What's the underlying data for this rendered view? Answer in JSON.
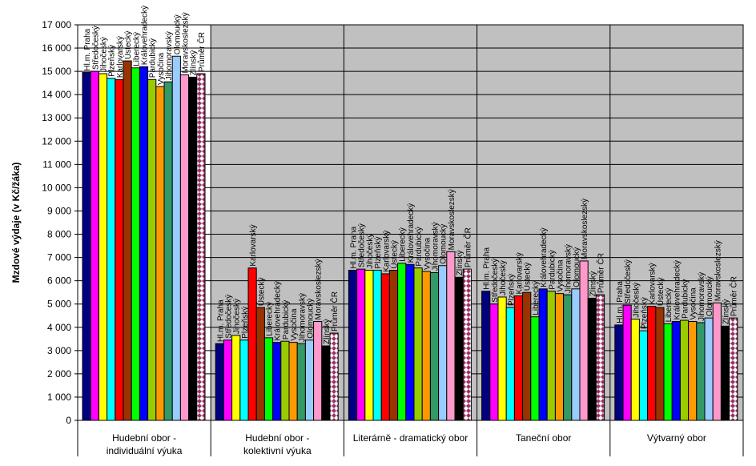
{
  "chart_data": {
    "type": "bar",
    "y_label": "Mzdové výdaje  (v Kč/žáka)",
    "categories": [
      [
        "Hudební obor -",
        "individuální výuka"
      ],
      [
        "Hudební obor -",
        "kolektivní výuka"
      ],
      [
        "Literárně - dramatický obor"
      ],
      [
        "Taneční obor"
      ],
      [
        "Výtvarný obor"
      ]
    ],
    "ylim": [
      0,
      17000
    ],
    "yticks": [
      0,
      {
        "value": 1000,
        "label": "1 000"
      },
      {
        "value": 2000,
        "label": "2 000"
      },
      {
        "value": 3000,
        "label": "3 000"
      },
      {
        "value": 4000,
        "label": "4 000"
      },
      {
        "value": 5000,
        "label": "5 000"
      },
      {
        "value": 6000,
        "label": "6 000"
      },
      {
        "value": 7000,
        "label": "7 000"
      },
      {
        "value": 8000,
        "label": "8 000"
      },
      {
        "value": 9000,
        "label": "9 000"
      },
      {
        "value": 10000,
        "label": "10 000"
      },
      {
        "value": 11000,
        "label": "11 000"
      },
      {
        "value": 12000,
        "label": "12 000"
      },
      {
        "value": 13000,
        "label": "13 000"
      },
      {
        "value": 14000,
        "label": "14 000"
      },
      {
        "value": 15000,
        "label": "15 000"
      },
      {
        "value": 16000,
        "label": "16 000"
      },
      {
        "value": 17000,
        "label": "17 000"
      }
    ],
    "grid": true,
    "series": [
      {
        "name": "Hl.m. Praha",
        "color": "#000080",
        "values": [
          14950,
          3300,
          6450,
          5550,
          4100
        ]
      },
      {
        "name": "Středočeský",
        "color": "#ff00ff",
        "values": [
          15000,
          3450,
          6500,
          5000,
          4950
        ]
      },
      {
        "name": "Jihočeský",
        "color": "#ffff00",
        "values": [
          14900,
          3650,
          6450,
          5300,
          4350
        ]
      },
      {
        "name": "Plzeňský",
        "color": "#00ffff",
        "values": [
          14700,
          3450,
          6450,
          4850,
          3850
        ]
      },
      {
        "name": "Karlovarský",
        "color": "#ff0000",
        "values": [
          14650,
          6550,
          6300,
          5350,
          4900
        ]
      },
      {
        "name": "Ústecký",
        "color": "#993300",
        "values": [
          15450,
          4850,
          6450,
          5500,
          4850
        ]
      },
      {
        "name": "Liberecký",
        "color": "#00ff00",
        "values": [
          15150,
          3550,
          6750,
          4450,
          4150
        ]
      },
      {
        "name": "Královehradecký",
        "color": "#0000ff",
        "values": [
          15200,
          3350,
          6700,
          5650,
          4250
        ]
      },
      {
        "name": "Pardubický",
        "color": "#99cc00",
        "values": [
          14650,
          3400,
          6550,
          5550,
          4300
        ]
      },
      {
        "name": "Vysočina",
        "color": "#ff9900",
        "values": [
          14350,
          3350,
          6400,
          5450,
          4250
        ]
      },
      {
        "name": "Jihomoravský",
        "color": "#339966",
        "values": [
          14550,
          3300,
          6350,
          5400,
          4200
        ]
      },
      {
        "name": "Olomoucký",
        "color": "#99ccff",
        "values": [
          15650,
          3450,
          6650,
          5650,
          4400
        ]
      },
      {
        "name": "Moravskoslezský",
        "color": "#ff99cc",
        "values": [
          14850,
          4250,
          7250,
          6850,
          5050
        ]
      },
      {
        "name": "Zlínský",
        "color": "#000000",
        "values": [
          14750,
          3200,
          6150,
          5250,
          4050
        ]
      },
      {
        "name": "Průměr ČR",
        "color": "#993366",
        "values": [
          14900,
          3750,
          6500,
          5400,
          4400
        ]
      }
    ]
  }
}
